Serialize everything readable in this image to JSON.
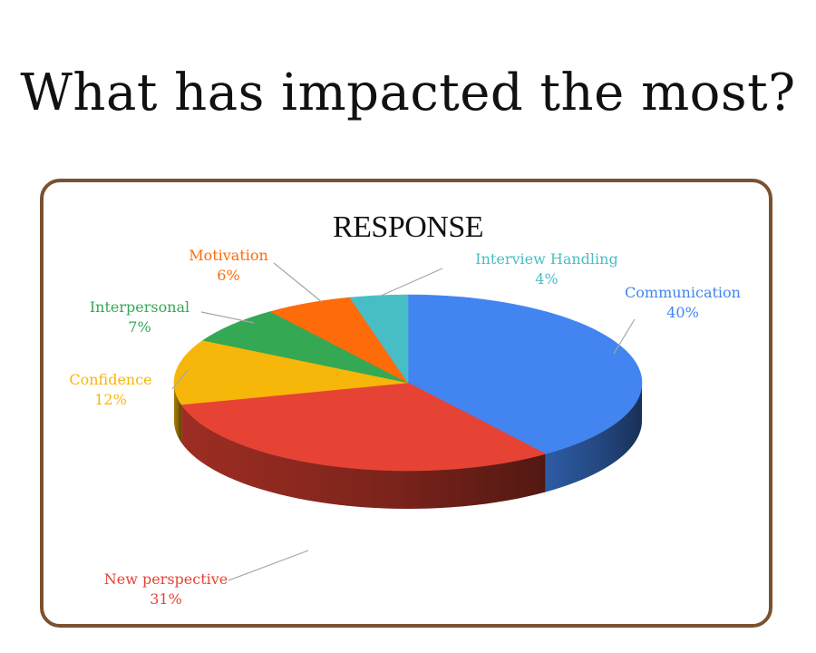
{
  "slide": {
    "title": "What has impacted the most?"
  },
  "chart_data": {
    "type": "pie",
    "title": "RESPONSE",
    "three_d": true,
    "slices": [
      {
        "label": "Communication",
        "value": 40,
        "display": "40%",
        "color": "#4285f0"
      },
      {
        "label": "New perspective",
        "value": 31,
        "display": "31%",
        "color": "#e64334"
      },
      {
        "label": "Confidence",
        "value": 12,
        "display": "12%",
        "color": "#f6b60a"
      },
      {
        "label": "Interpersonal",
        "value": 7,
        "display": "7%",
        "color": "#34a853"
      },
      {
        "label": "Motivation",
        "value": 6,
        "display": "6%",
        "color": "#fd6b0a"
      },
      {
        "label": "Interview Handling",
        "value": 4,
        "display": "4%",
        "color": "#47bec6"
      }
    ],
    "legend": "none",
    "data_labels": "outside with leader lines"
  },
  "frame": {
    "border_color": "#7a5230"
  }
}
